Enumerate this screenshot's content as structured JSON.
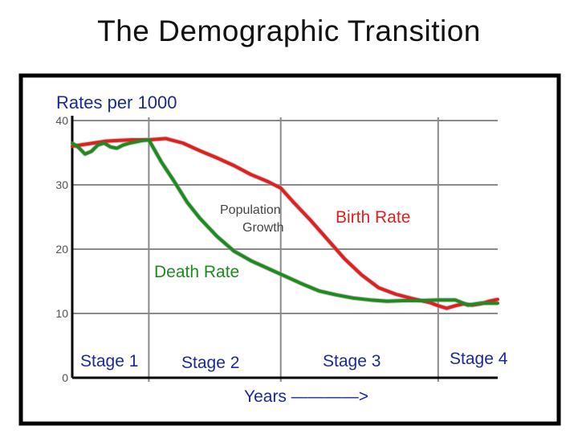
{
  "page": {
    "title": "The Demographic Transition"
  },
  "chart_data": {
    "type": "line",
    "title": "The Demographic Transition",
    "ylabel": "Rates per 1000",
    "xlabel": "Years ————>",
    "ylim": [
      0,
      40
    ],
    "yticks": [
      0,
      10,
      20,
      30,
      40
    ],
    "xlim": [
      0,
      100
    ],
    "grid": true,
    "stages": [
      {
        "label": "Stage 1",
        "label_color": "#1a2a9c"
      },
      {
        "label": "Stage 2",
        "label_color": "#1a2a9c"
      },
      {
        "label": "Stage 3",
        "label_color": "#1a2a9c"
      },
      {
        "label": "Stage 4",
        "label_color": "#1a2a9c"
      }
    ],
    "stage_boundaries": [
      18,
      49,
      86
    ],
    "annotation": {
      "text_line1": "Population",
      "text_line2": "Growth",
      "color": "#444444"
    },
    "series": [
      {
        "name": "Birth Rate",
        "color": "#e02020",
        "x": [
          0,
          2,
          5,
          8,
          11,
          14,
          16,
          18,
          22,
          26,
          30,
          34,
          38,
          42,
          46,
          49,
          52,
          56,
          60,
          64,
          68,
          72,
          76,
          80,
          84,
          86,
          88,
          90,
          92,
          94,
          96,
          98,
          100
        ],
        "y": [
          36,
          36.2,
          36.5,
          36.8,
          36.9,
          37,
          37,
          37,
          37.2,
          36.5,
          35.3,
          34.2,
          33,
          31.6,
          30.5,
          29.5,
          27.3,
          24.5,
          21.5,
          18.5,
          16,
          14,
          13,
          12.3,
          11.7,
          11.2,
          10.8,
          11.2,
          11.5,
          11.3,
          11.5,
          11.9,
          12.2
        ]
      },
      {
        "name": "Death Rate",
        "color": "#1f8a1f",
        "x": [
          0,
          1.5,
          3,
          4.5,
          6,
          7.5,
          9,
          10.5,
          12,
          13.5,
          15,
          16.5,
          18,
          21,
          24,
          27,
          30,
          34,
          38,
          42,
          46,
          50,
          54,
          58,
          62,
          66,
          70,
          74,
          78,
          82,
          86,
          90,
          93,
          96,
          100
        ],
        "y": [
          36.5,
          35.8,
          34.8,
          35.2,
          36.2,
          36.5,
          35.9,
          35.7,
          36.2,
          36.5,
          36.7,
          36.9,
          37,
          33.5,
          30.5,
          27.3,
          24.8,
          22,
          19.7,
          18.2,
          17,
          15.8,
          14.6,
          13.5,
          12.9,
          12.4,
          12.1,
          11.9,
          12,
          12,
          12.1,
          12.1,
          11.3,
          11.6,
          11.6
        ]
      }
    ]
  }
}
